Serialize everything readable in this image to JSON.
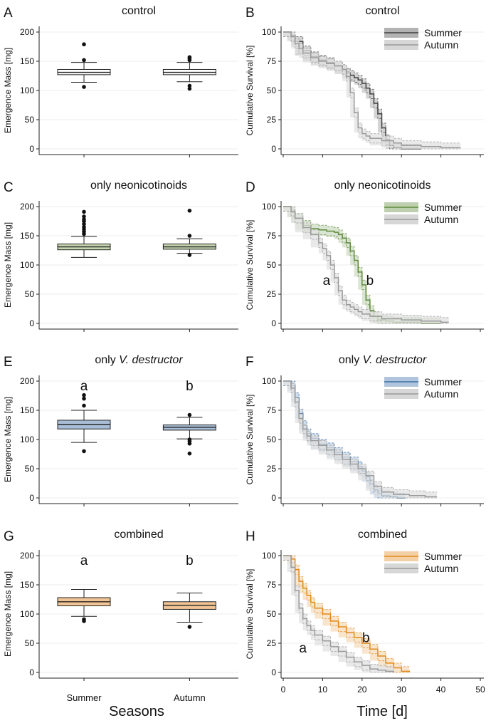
{
  "figure": {
    "xlabel_left": "Seasons",
    "xlabel_right": "Time [d]",
    "box_categories": [
      "Summer",
      "Autumn"
    ],
    "survival_xticks": [
      "0",
      "10",
      "20",
      "30",
      "40",
      "50"
    ],
    "legend_labels": [
      "Summer",
      "Autumn"
    ]
  },
  "chart_data": [
    {
      "panel": "A",
      "type": "box",
      "title": "control",
      "ylabel": "Emergence Mass [mg]",
      "ylim": [
        0,
        200
      ],
      "yticks": [
        0,
        50,
        100,
        150,
        200
      ],
      "color": "#ffffff",
      "categories": [
        "Summer",
        "Autumn"
      ],
      "boxes": [
        {
          "name": "Summer",
          "min": 114,
          "q1": 127,
          "median": 131,
          "q3": 136,
          "max": 148,
          "outliers": [
            106,
            152,
            179
          ],
          "letter": ""
        },
        {
          "name": "Autumn",
          "min": 115,
          "q1": 127,
          "median": 131,
          "q3": 136,
          "max": 148,
          "outliers": [
            103,
            108,
            152,
            155,
            157
          ],
          "letter": ""
        }
      ]
    },
    {
      "panel": "B",
      "type": "line",
      "title": "control",
      "ylabel": "Cumulative Survival [%]",
      "ylim": [
        0,
        100
      ],
      "xlim": [
        0,
        50
      ],
      "yticks": [
        0,
        25,
        50,
        75,
        100
      ],
      "series": [
        {
          "name": "Summer",
          "color": "#404040",
          "x": [
            0,
            1,
            2,
            3,
            5,
            7,
            9,
            11,
            13,
            15,
            16,
            17,
            18,
            19,
            20,
            21,
            22,
            23,
            24,
            25,
            26,
            27,
            28,
            30,
            35
          ],
          "y": [
            100,
            100,
            97,
            92,
            84,
            79,
            76,
            74,
            71,
            68,
            65,
            63,
            61,
            59,
            56,
            52,
            47,
            39,
            30,
            18,
            8,
            3,
            1,
            0,
            0
          ]
        },
        {
          "name": "Autumn",
          "color": "#9a9a9a",
          "x": [
            0,
            1,
            2,
            3,
            4,
            5,
            7,
            9,
            11,
            13,
            15,
            16,
            17,
            18,
            19,
            20,
            21,
            22,
            25,
            28,
            30,
            35,
            40,
            45
          ],
          "y": [
            100,
            100,
            96,
            90,
            86,
            82,
            78,
            75,
            73,
            71,
            68,
            62,
            48,
            31,
            18,
            13,
            11,
            9,
            7,
            5,
            3,
            2,
            1,
            1
          ]
        }
      ],
      "annotations": []
    },
    {
      "panel": "C",
      "type": "box",
      "title": "only neonicotinoids",
      "ylabel": "Emergence Mass [mg]",
      "ylim": [
        0,
        200
      ],
      "yticks": [
        0,
        50,
        100,
        150,
        200
      ],
      "color": "#c6d6b0",
      "categories": [
        "Summer",
        "Autumn"
      ],
      "boxes": [
        {
          "name": "Summer",
          "min": 113,
          "q1": 126,
          "median": 131,
          "q3": 136,
          "max": 149,
          "outliers": [
            153,
            157,
            161,
            165,
            170,
            175,
            178,
            183,
            191
          ],
          "letter": ""
        },
        {
          "name": "Autumn",
          "min": 120,
          "q1": 127,
          "median": 131,
          "q3": 136,
          "max": 145,
          "outliers": [
            117,
            150,
            193
          ],
          "letter": ""
        }
      ]
    },
    {
      "panel": "D",
      "type": "line",
      "title": "only neonicotinoids",
      "ylabel": "Cumulative Survival [%]",
      "ylim": [
        0,
        100
      ],
      "xlim": [
        0,
        50
      ],
      "yticks": [
        0,
        25,
        50,
        75,
        100
      ],
      "series": [
        {
          "name": "Summer",
          "color": "#5e8a3a",
          "x": [
            0,
            1,
            2,
            3,
            5,
            7,
            9,
            11,
            13,
            14,
            15,
            16,
            17,
            18,
            19,
            20,
            21,
            22,
            23,
            24,
            26,
            28,
            30,
            35,
            40
          ],
          "y": [
            100,
            100,
            95,
            90,
            84,
            81,
            80,
            79,
            78,
            76,
            73,
            69,
            62,
            54,
            44,
            33,
            20,
            11,
            6,
            3,
            2,
            1,
            1,
            0,
            0
          ]
        },
        {
          "name": "Autumn",
          "color": "#9a9a9a",
          "x": [
            0,
            1,
            2,
            3,
            5,
            7,
            9,
            10,
            11,
            12,
            13,
            14,
            15,
            16,
            17,
            18,
            19,
            20,
            22,
            25,
            30,
            35,
            40,
            42
          ],
          "y": [
            100,
            100,
            96,
            90,
            82,
            76,
            69,
            64,
            58,
            50,
            39,
            28,
            20,
            16,
            14,
            12,
            10,
            8,
            6,
            4,
            3,
            2,
            1,
            1
          ]
        }
      ],
      "annotations": [
        {
          "text": "a",
          "x": 11,
          "y": 33
        },
        {
          "text": "b",
          "x": 22,
          "y": 33
        }
      ]
    },
    {
      "panel": "E",
      "type": "box",
      "title": "only V. destructor",
      "title_plain": "only ",
      "title_italic": "V. destructor",
      "ylabel": "Emergence Mass [mg]",
      "ylim": [
        0,
        200
      ],
      "yticks": [
        0,
        50,
        100,
        150,
        200
      ],
      "color": "#a8bdd6",
      "categories": [
        "Summer",
        "Autumn"
      ],
      "boxes": [
        {
          "name": "Summer",
          "min": 95,
          "q1": 118,
          "median": 126,
          "q3": 133,
          "max": 150,
          "outliers": [
            80,
            158,
            170,
            176
          ],
          "letter": "a"
        },
        {
          "name": "Autumn",
          "min": 101,
          "q1": 116,
          "median": 121,
          "q3": 125,
          "max": 138,
          "outliers": [
            76,
            93,
            97,
            100,
            142
          ],
          "letter": "b"
        }
      ]
    },
    {
      "panel": "F",
      "type": "line",
      "title": "only V. destructor",
      "title_plain": "only ",
      "title_italic": "V. destructor",
      "ylabel": "Cumulative Survival [%]",
      "ylim": [
        0,
        100
      ],
      "xlim": [
        0,
        50
      ],
      "yticks": [
        0,
        25,
        50,
        75,
        100
      ],
      "series": [
        {
          "name": "Summer",
          "color": "#3a6ea5",
          "x": [
            0,
            1,
            2,
            3,
            4,
            5,
            6,
            7,
            9,
            11,
            13,
            15,
            17,
            19,
            20,
            21,
            22,
            23,
            24,
            25,
            27,
            29,
            31
          ],
          "y": [
            100,
            100,
            96,
            86,
            72,
            62,
            55,
            51,
            46,
            43,
            39,
            35,
            31,
            27,
            23,
            18,
            12,
            7,
            4,
            2,
            1,
            0,
            0
          ]
        },
        {
          "name": "Autumn",
          "color": "#9a9a9a",
          "x": [
            0,
            1,
            2,
            3,
            4,
            5,
            6,
            7,
            9,
            11,
            13,
            15,
            17,
            19,
            21,
            23,
            25,
            28,
            32,
            36,
            39
          ],
          "y": [
            100,
            100,
            94,
            82,
            68,
            59,
            53,
            49,
            45,
            41,
            37,
            33,
            29,
            25,
            19,
            10,
            5,
            3,
            2,
            1,
            1
          ]
        }
      ],
      "annotations": []
    },
    {
      "panel": "G",
      "type": "box",
      "title": "combined",
      "ylabel": "Emergence Mass [mg]",
      "ylim": [
        0,
        200
      ],
      "yticks": [
        0,
        50,
        100,
        150,
        200
      ],
      "color": "#f0c494",
      "categories": [
        "Summer",
        "Autumn"
      ],
      "boxes": [
        {
          "name": "Summer",
          "min": 96,
          "q1": 114,
          "median": 121,
          "q3": 128,
          "max": 142,
          "outliers": [
            88,
            91
          ],
          "letter": "a"
        },
        {
          "name": "Autumn",
          "min": 86,
          "q1": 108,
          "median": 115,
          "q3": 121,
          "max": 136,
          "outliers": [
            78
          ],
          "letter": "b"
        }
      ]
    },
    {
      "panel": "H",
      "type": "line",
      "title": "combined",
      "ylabel": "Cumulative Survival [%]",
      "ylim": [
        0,
        100
      ],
      "xlim": [
        0,
        50
      ],
      "yticks": [
        0,
        25,
        50,
        75,
        100
      ],
      "series": [
        {
          "name": "Summer",
          "color": "#e08a1e",
          "x": [
            0,
            1,
            2,
            3,
            4,
            5,
            6,
            7,
            8,
            10,
            12,
            14,
            16,
            18,
            20,
            22,
            24,
            26,
            28,
            30,
            32
          ],
          "y": [
            100,
            100,
            97,
            88,
            78,
            72,
            66,
            60,
            55,
            50,
            44,
            39,
            34,
            30,
            25,
            20,
            14,
            8,
            4,
            1,
            0
          ]
        },
        {
          "name": "Autumn",
          "color": "#9a9a9a",
          "x": [
            0,
            1,
            2,
            3,
            4,
            5,
            6,
            7,
            8,
            10,
            12,
            14,
            16,
            18,
            20,
            22,
            24,
            26,
            28
          ],
          "y": [
            100,
            100,
            90,
            70,
            55,
            46,
            40,
            36,
            32,
            27,
            22,
            18,
            13,
            9,
            6,
            3,
            2,
            1,
            0
          ]
        }
      ],
      "annotations": [
        {
          "text": "a",
          "x": 5,
          "y": 17
        },
        {
          "text": "b",
          "x": 21,
          "y": 26
        }
      ]
    }
  ]
}
